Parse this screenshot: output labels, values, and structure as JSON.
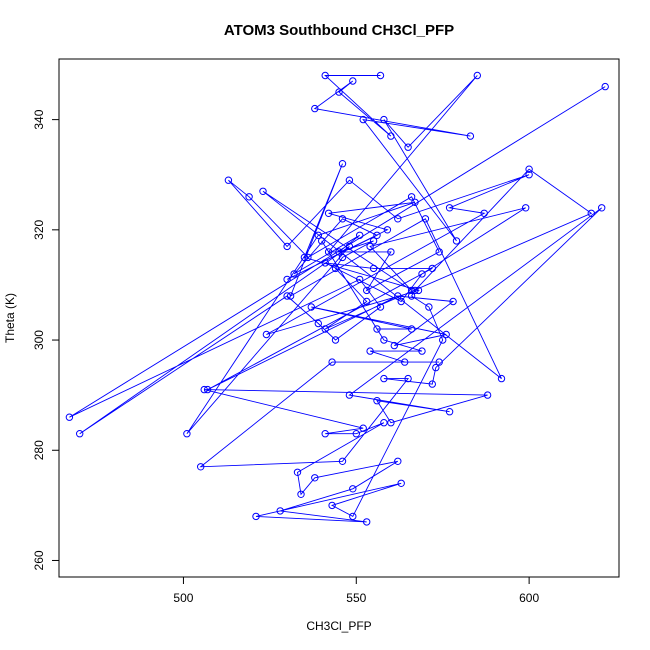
{
  "chart_data": {
    "type": "line",
    "title": "ATOM3 Southbound CH3Cl_PFP",
    "xlabel": "CH3Cl_PFP",
    "ylabel": "Theta (K)",
    "xlim": [
      464,
      626
    ],
    "ylim": [
      257,
      351
    ],
    "xticks": [
      500,
      550,
      600
    ],
    "yticks": [
      260,
      280,
      300,
      320,
      340
    ],
    "series_color": "#0000ff",
    "markers": "open-circle",
    "x": [
      557,
      541,
      560,
      545,
      549,
      538,
      583,
      552,
      579,
      558,
      565,
      585,
      542,
      560,
      553,
      574,
      566,
      536,
      519,
      513,
      530,
      548,
      562,
      600,
      577,
      587,
      524,
      568,
      535,
      546,
      531,
      570,
      592,
      523,
      566,
      554,
      599,
      569,
      563,
      541,
      555,
      572,
      507,
      562,
      578,
      561,
      576,
      537,
      566,
      556,
      540,
      558,
      569,
      554,
      564,
      574,
      543,
      505,
      546,
      565,
      558,
      572,
      573,
      621,
      548,
      577,
      556,
      560,
      588,
      506,
      552,
      541,
      550,
      558,
      533,
      534,
      538,
      562,
      549,
      528,
      553,
      521,
      563,
      543,
      549,
      575,
      571,
      566,
      567,
      600,
      618,
      541,
      553,
      544,
      546,
      555,
      545,
      551,
      532,
      546,
      556,
      530,
      559,
      542,
      567,
      539,
      501,
      548,
      470,
      530,
      539,
      544,
      557,
      551,
      467,
      622
    ],
    "y": [
      348,
      348,
      337,
      345,
      347,
      342,
      337,
      340,
      318,
      340,
      335,
      348,
      316,
      316,
      309,
      316,
      326,
      315,
      326,
      329,
      317,
      329,
      322,
      330,
      324,
      323,
      301,
      309,
      315,
      332,
      308,
      322,
      293,
      327,
      309,
      317,
      324,
      312,
      307,
      314,
      313,
      313,
      291,
      308,
      307,
      299,
      301,
      306,
      302,
      302,
      318,
      300,
      298,
      298,
      296,
      296,
      296,
      277,
      278,
      293,
      293,
      292,
      295,
      324,
      290,
      287,
      289,
      285,
      290,
      291,
      284,
      283,
      283,
      285,
      276,
      272,
      275,
      278,
      273,
      269,
      267,
      268,
      274,
      270,
      268,
      300,
      306,
      308,
      309,
      331,
      323,
      302,
      307,
      313,
      315,
      318,
      316,
      319,
      312,
      322,
      319,
      311,
      320,
      323,
      325,
      319,
      283,
      317,
      283,
      308,
      303,
      300,
      306,
      311,
      286,
      346
    ]
  }
}
